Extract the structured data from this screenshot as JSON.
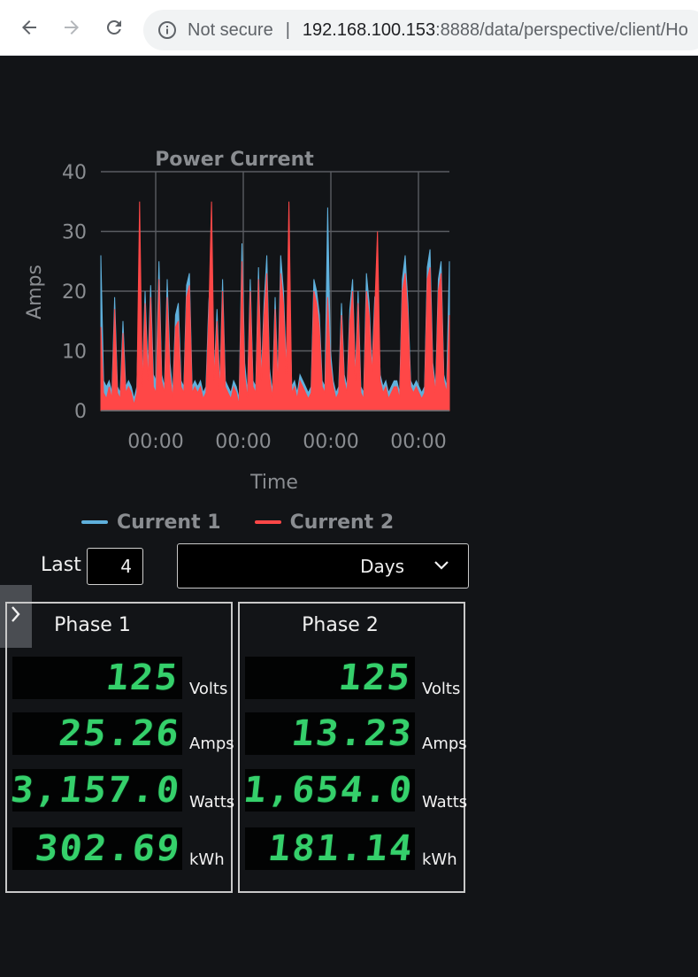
{
  "browser": {
    "security_text": "Not secure",
    "url_host": "192.168.100.153",
    "url_rest": ":8888/data/perspective/client/Ho"
  },
  "chart_data": {
    "type": "line",
    "title": "Power Current",
    "xlabel": "Time",
    "ylabel": "Amps",
    "ylim": [
      0,
      40
    ],
    "yticks": [
      0,
      10,
      20,
      30,
      40
    ],
    "xticks": [
      "00:00",
      "00:00",
      "00:00",
      "00:00"
    ],
    "grid": true,
    "legend": "bottom",
    "series": [
      {
        "name": "Current 1",
        "color": "#5fb0dc",
        "values": [
          26,
          5,
          4,
          5,
          3,
          19,
          4,
          3,
          15,
          4,
          5,
          4,
          2,
          4,
          24,
          5,
          20,
          7,
          21,
          6,
          5,
          25,
          6,
          4,
          22,
          8,
          3,
          16,
          18,
          5,
          4,
          21,
          23,
          4,
          5,
          4,
          5,
          3,
          4,
          18,
          25,
          6,
          17,
          4,
          22,
          5,
          4,
          3,
          5,
          4,
          2,
          28,
          8,
          3,
          22,
          5,
          4,
          24,
          6,
          18,
          26,
          7,
          3,
          19,
          5,
          26,
          20,
          8,
          23,
          4,
          5,
          3,
          6,
          5,
          4,
          3,
          4,
          22,
          20,
          16,
          5,
          4,
          34,
          10,
          5,
          3,
          4,
          18,
          6,
          4,
          17,
          22,
          6,
          20,
          4,
          3,
          23,
          18,
          7,
          19,
          20,
          6,
          4,
          5,
          3,
          4,
          5,
          5,
          3,
          22,
          26,
          18,
          5,
          4,
          5,
          4,
          3,
          4,
          24,
          27,
          8,
          4,
          22,
          25,
          6,
          4,
          25
        ]
      },
      {
        "name": "Current 2",
        "color": "#ff4747",
        "values": [
          14,
          3,
          2,
          4,
          2,
          17,
          3,
          2,
          13,
          3,
          4,
          3,
          1,
          3,
          35,
          4,
          18,
          5,
          19,
          4,
          3,
          22,
          5,
          3,
          19,
          6,
          2,
          14,
          15,
          4,
          3,
          19,
          21,
          3,
          4,
          3,
          4,
          2,
          3,
          16,
          35,
          5,
          15,
          3,
          20,
          4,
          3,
          2,
          4,
          3,
          1,
          25,
          6,
          2,
          20,
          4,
          3,
          22,
          5,
          16,
          23,
          6,
          2,
          17,
          4,
          23,
          18,
          6,
          35,
          3,
          4,
          2,
          5,
          4,
          3,
          2,
          3,
          20,
          18,
          14,
          4,
          3,
          19,
          8,
          4,
          2,
          3,
          16,
          5,
          3,
          15,
          20,
          5,
          18,
          3,
          2,
          20,
          16,
          6,
          17,
          30,
          5,
          3,
          4,
          2,
          3,
          4,
          4,
          2,
          20,
          23,
          16,
          4,
          3,
          4,
          3,
          2,
          3,
          22,
          24,
          7,
          3,
          20,
          23,
          5,
          3,
          16
        ]
      }
    ]
  },
  "controls": {
    "last_label": "Last",
    "last_value": "4",
    "units_value": "Days"
  },
  "phases": [
    {
      "title": "Phase 1",
      "volts": "125",
      "volts_unit": "Volts",
      "amps": "25.26",
      "amps_unit": "Amps",
      "watts": "3,157.0",
      "watts_unit": "Watts",
      "kwh": "302.69",
      "kwh_unit": "kWh"
    },
    {
      "title": "Phase 2",
      "volts": "125",
      "volts_unit": "Volts",
      "amps": "13.23",
      "amps_unit": "Amps",
      "watts": "1,654.0",
      "watts_unit": "Watts",
      "kwh": "181.14",
      "kwh_unit": "kWh"
    }
  ]
}
